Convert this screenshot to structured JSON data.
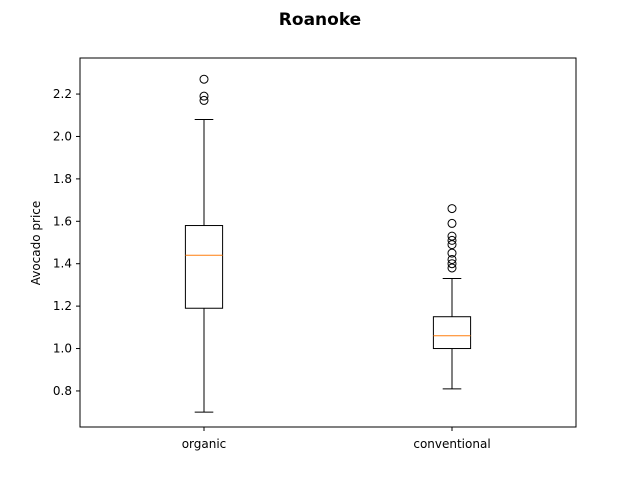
{
  "chart_data": {
    "type": "box",
    "title": "Roanoke",
    "xlabel": "",
    "ylabel": "Avocado price",
    "ylim": [
      0.63,
      2.37
    ],
    "yticks": [
      0.8,
      1.0,
      1.2,
      1.4,
      1.6,
      1.8,
      2.0,
      2.2
    ],
    "ytick_labels": [
      "0.8",
      "1.0",
      "1.2",
      "1.4",
      "1.6",
      "1.8",
      "2.0",
      "2.2"
    ],
    "categories": [
      "organic",
      "conventional"
    ],
    "boxes": [
      {
        "category": "organic",
        "whisker_low": 0.7,
        "q1": 1.19,
        "median": 1.44,
        "q3": 1.58,
        "whisker_high": 2.08,
        "outliers": [
          2.17,
          2.19,
          2.27
        ]
      },
      {
        "category": "conventional",
        "whisker_low": 0.81,
        "q1": 1.0,
        "median": 1.06,
        "q3": 1.15,
        "whisker_high": 1.33,
        "outliers": [
          1.38,
          1.4,
          1.42,
          1.45,
          1.49,
          1.51,
          1.53,
          1.59,
          1.66
        ]
      }
    ],
    "colors": {
      "box": "#000000",
      "median": "#ff7f0e",
      "background": "#ffffff"
    },
    "grid": false
  }
}
